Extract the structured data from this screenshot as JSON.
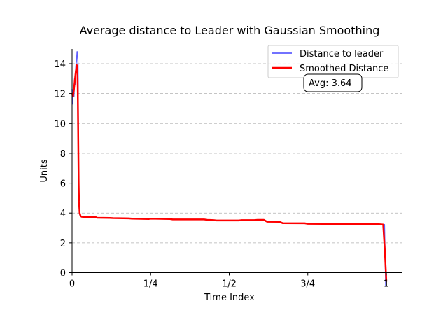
{
  "chart_data": {
    "type": "line",
    "title": "Average distance to Leader with Gaussian Smoothing",
    "xlabel": "Time Index",
    "ylabel": "Units",
    "xlim": [
      0,
      1.05
    ],
    "ylim": [
      0,
      15
    ],
    "xticks": [
      {
        "value": 0,
        "label": "0"
      },
      {
        "value": 0.25,
        "label": "1/4"
      },
      {
        "value": 0.5,
        "label": "1/2"
      },
      {
        "value": 0.75,
        "label": "3/4"
      },
      {
        "value": 1.0,
        "label": "1"
      }
    ],
    "yticks": [
      0,
      2,
      4,
      6,
      8,
      10,
      12,
      14
    ],
    "grid": "y-dashed",
    "legend_position": "top-right",
    "annotation": "Avg: 3.64",
    "series": [
      {
        "name": "Distance to leader",
        "color": "#4444ff",
        "x": [
          0,
          0.002,
          0.004,
          0.006,
          0.008,
          0.01,
          0.012,
          0.014,
          0.016,
          0.018,
          0.019,
          0.02,
          0.021,
          0.022,
          0.024,
          0.027,
          0.03,
          0.035,
          0.05,
          0.075,
          0.08,
          0.12,
          0.13,
          0.18,
          0.19,
          0.245,
          0.25,
          0.31,
          0.32,
          0.42,
          0.43,
          0.45,
          0.46,
          0.53,
          0.54,
          0.58,
          0.59,
          0.61,
          0.62,
          0.66,
          0.67,
          0.74,
          0.75,
          0.8,
          0.85,
          0.95,
          0.96,
          0.994,
          0.996,
          0.998,
          1.0
        ],
        "y": [
          12.3,
          11.3,
          12.5,
          11.8,
          13.0,
          12.6,
          13.8,
          14.2,
          14.8,
          14.5,
          13.9,
          9.0,
          6.0,
          4.5,
          3.9,
          3.8,
          3.75,
          3.74,
          3.74,
          3.73,
          3.68,
          3.67,
          3.66,
          3.64,
          3.62,
          3.6,
          3.62,
          3.6,
          3.57,
          3.57,
          3.54,
          3.52,
          3.5,
          3.5,
          3.52,
          3.52,
          3.54,
          3.54,
          3.42,
          3.41,
          3.32,
          3.31,
          3.28,
          3.27,
          3.27,
          3.26,
          3.22,
          3.22,
          1.2,
          -0.9,
          -0.9
        ]
      },
      {
        "name": "Smoothed Distance",
        "color": "#ff0000",
        "x": [
          0,
          0.003,
          0.006,
          0.009,
          0.012,
          0.015,
          0.017,
          0.018,
          0.019,
          0.02,
          0.021,
          0.022,
          0.024,
          0.027,
          0.03,
          0.035,
          0.05,
          0.075,
          0.08,
          0.12,
          0.13,
          0.18,
          0.19,
          0.245,
          0.25,
          0.31,
          0.32,
          0.42,
          0.43,
          0.45,
          0.46,
          0.53,
          0.54,
          0.58,
          0.59,
          0.61,
          0.62,
          0.66,
          0.67,
          0.74,
          0.75,
          0.8,
          0.85,
          0.95,
          0.96,
          0.99,
          0.995,
          1.0
        ],
        "y": [
          12.0,
          11.8,
          12.3,
          12.9,
          13.5,
          13.9,
          13.6,
          12.5,
          10.5,
          8.0,
          6.0,
          4.8,
          4.0,
          3.8,
          3.75,
          3.74,
          3.74,
          3.73,
          3.68,
          3.67,
          3.66,
          3.64,
          3.62,
          3.6,
          3.62,
          3.6,
          3.57,
          3.57,
          3.54,
          3.52,
          3.5,
          3.5,
          3.52,
          3.52,
          3.54,
          3.54,
          3.42,
          3.41,
          3.32,
          3.31,
          3.28,
          3.27,
          3.27,
          3.26,
          3.28,
          3.22,
          1.5,
          -0.6
        ]
      }
    ]
  }
}
